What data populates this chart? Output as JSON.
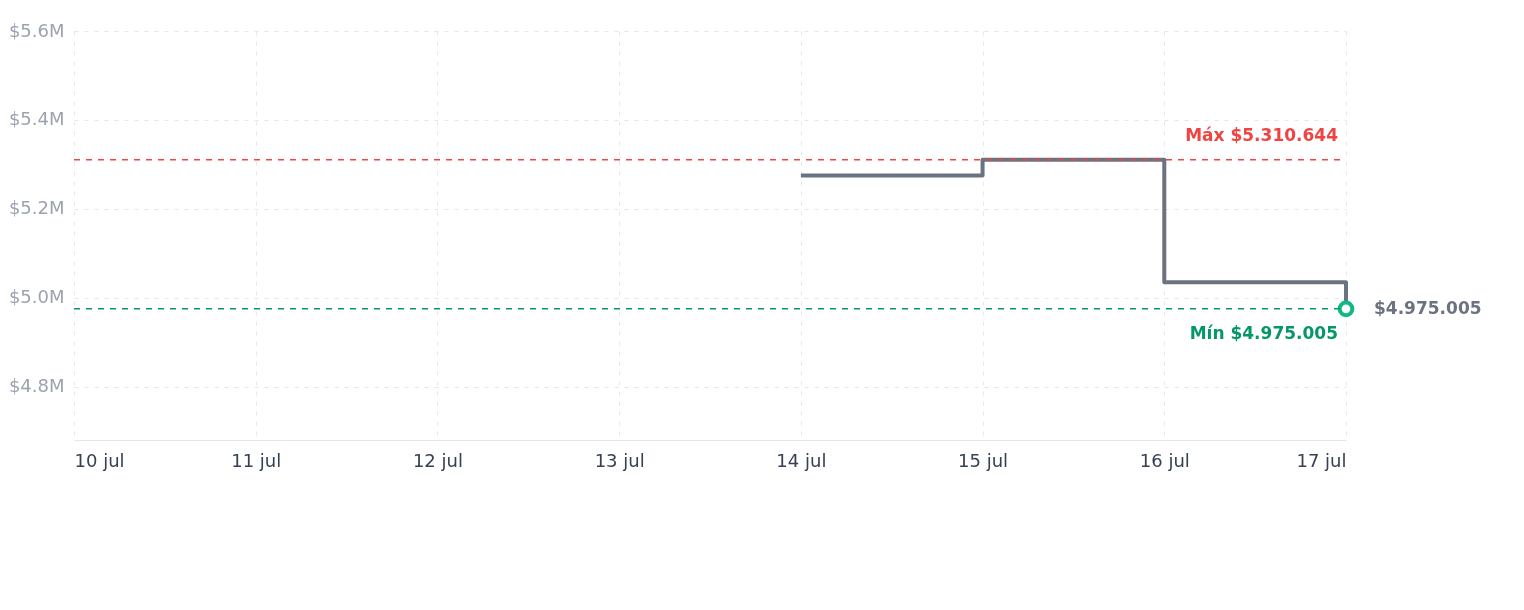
{
  "chart_data": {
    "type": "step",
    "x": [
      "--07-14",
      "--07-15",
      "--07-16",
      "--07-17"
    ],
    "series": [
      {
        "color": "#6b7280",
        "values": [
          5275000,
          5310644,
          5035000,
          4975005
        ]
      },
      {
        "type": "scatter",
        "color": "#10b981",
        "marker": "circle",
        "x": [
          "--07-17"
        ],
        "values": [
          4975005
        ],
        "value_labels": [
          "$4.975.005"
        ]
      }
    ],
    "xlim": [
      "--07-10",
      "--07-17"
    ],
    "xticks": [
      {
        "value": "--07-10",
        "label": "10 jul"
      },
      {
        "value": "--07-11",
        "label": "11 jul"
      },
      {
        "value": "--07-12",
        "label": "12 jul"
      },
      {
        "value": "--07-13",
        "label": "13 jul"
      },
      {
        "value": "--07-14",
        "label": "14 jul"
      },
      {
        "value": "--07-15",
        "label": "15 jul"
      },
      {
        "value": "--07-16",
        "label": "16 jul"
      },
      {
        "value": "--07-17",
        "label": "17 jul"
      }
    ],
    "ylim": [
      4680000,
      5600000
    ],
    "yticks": [
      {
        "value": 4800000,
        "label": "$4.8M"
      },
      {
        "value": 5000000,
        "label": "$5.0M"
      },
      {
        "value": 5200000,
        "label": "$5.2M"
      },
      {
        "value": 5400000,
        "label": "$5.4M"
      },
      {
        "value": 5600000,
        "label": "$5.6M"
      }
    ],
    "ref_lines": [
      {
        "axis": "y",
        "value": 5310644,
        "label": "Máx $5.310.644",
        "color": "#ef4444",
        "line_style": "dashed"
      },
      {
        "axis": "y",
        "value": 4975005,
        "label": "Mín $4.975.005",
        "color": "#059669",
        "line_style": "dashed"
      }
    ],
    "grid": true,
    "line_style": "solid"
  }
}
